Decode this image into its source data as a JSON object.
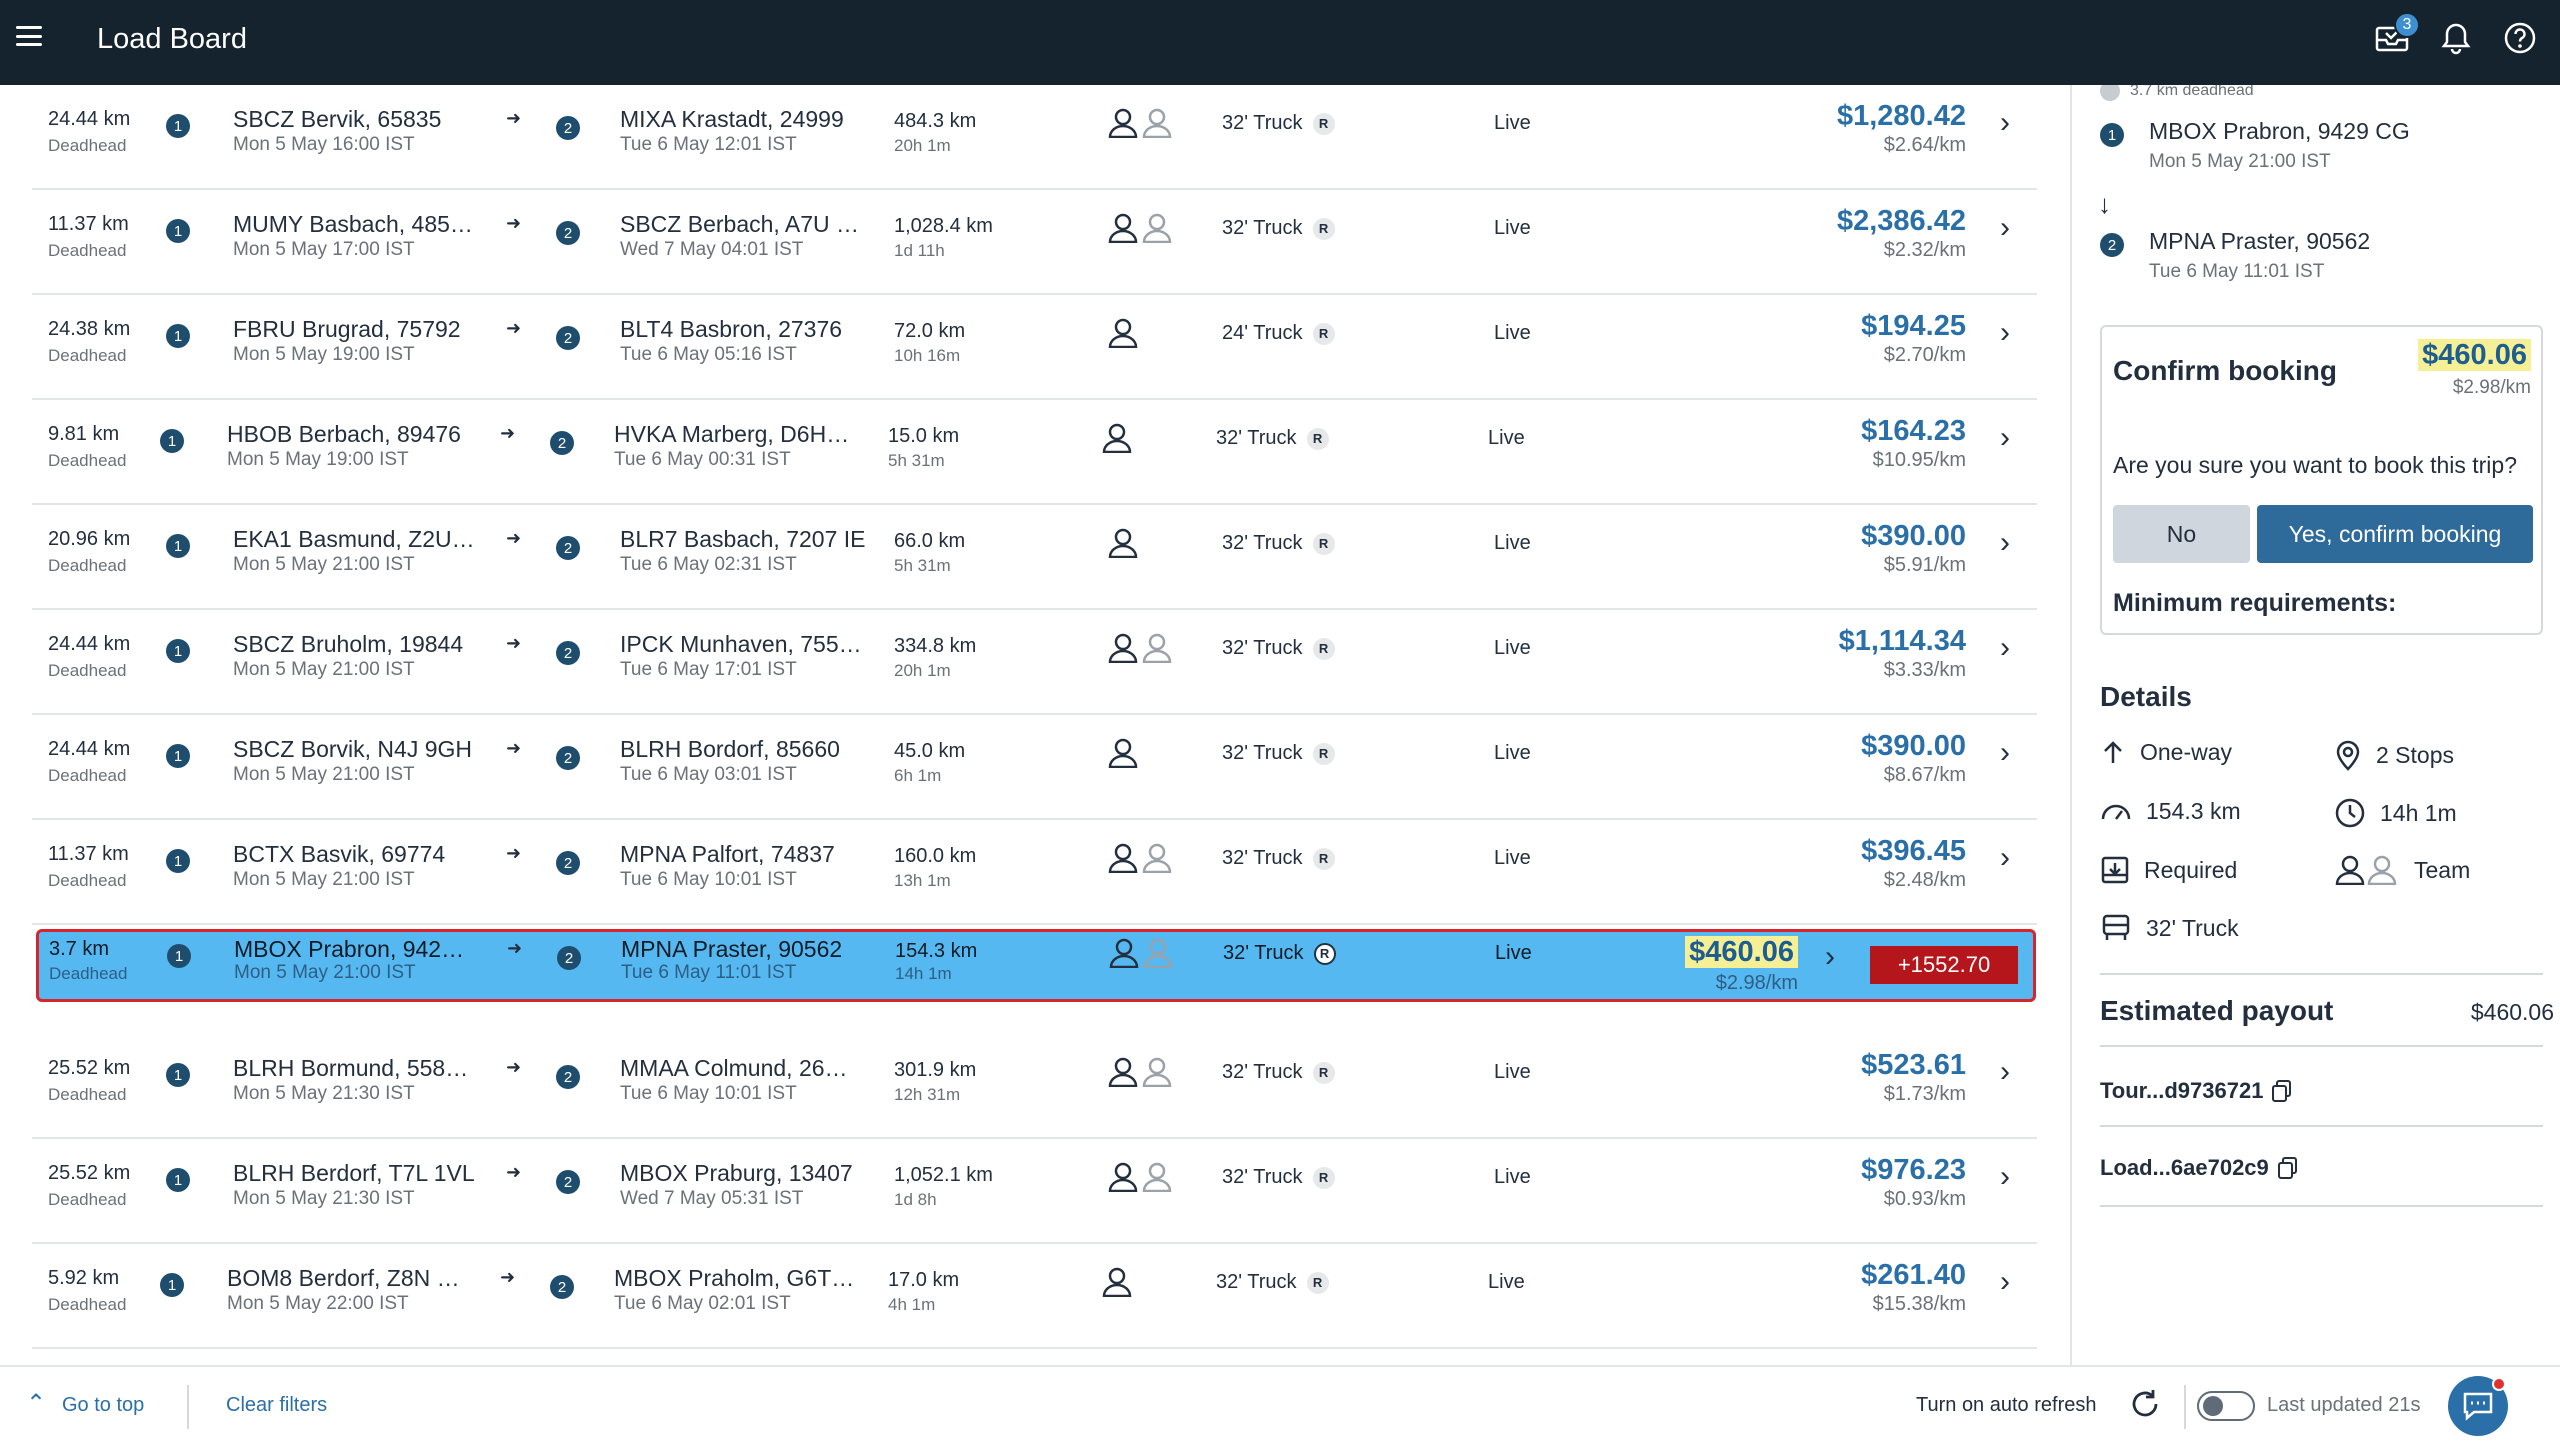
{
  "header": {
    "title": "Load Board",
    "notification_count": "3"
  },
  "loads": [
    {
      "deadhead": "24.44 km",
      "deadhead_label": "Deadhead",
      "origin": "SBCZ Bervik, 65835",
      "origin_time": "Mon 5 May 16:00 IST",
      "dest": "MIXA Krastadt, 24999",
      "dest_time": "Tue 6 May 12:01 IST",
      "distance": "484.3 km",
      "duration": "20h 1m",
      "team": true,
      "equipment": "32' Truck",
      "equip_badge": "R",
      "status": "Live",
      "price": "$1,280.42",
      "rate": "$2.64/km"
    },
    {
      "deadhead": "11.37 km",
      "deadhead_label": "Deadhead",
      "origin": "MUMY Basbach, 485…",
      "origin_time": "Mon 5 May 17:00 IST",
      "dest": "SBCZ Berbach, A7U …",
      "dest_time": "Wed 7 May 04:01 IST",
      "distance": "1,028.4 km",
      "duration": "1d 11h",
      "team": true,
      "equipment": "32' Truck",
      "equip_badge": "R",
      "status": "Live",
      "price": "$2,386.42",
      "rate": "$2.32/km"
    },
    {
      "deadhead": "24.38 km",
      "deadhead_label": "Deadhead",
      "origin": "FBRU Brugrad, 75792",
      "origin_time": "Mon 5 May 19:00 IST",
      "dest": "BLT4 Basbron, 27376",
      "dest_time": "Tue 6 May 05:16 IST",
      "distance": "72.0 km",
      "duration": "10h 16m",
      "team": false,
      "equipment": "24' Truck",
      "equip_badge": "R",
      "status": "Live",
      "price": "$194.25",
      "rate": "$2.70/km"
    },
    {
      "deadhead": "9.81 km",
      "deadhead_label": "Deadhead",
      "origin": "HBOB Berbach, 89476",
      "origin_time": "Mon 5 May 19:00 IST",
      "dest": "HVKA Marberg, D6H…",
      "dest_time": "Tue 6 May 00:31 IST",
      "distance": "15.0 km",
      "duration": "5h 31m",
      "team": false,
      "equipment": "32' Truck",
      "equip_badge": "R",
      "status": "Live",
      "price": "$164.23",
      "rate": "$10.95/km"
    },
    {
      "deadhead": "20.96 km",
      "deadhead_label": "Deadhead",
      "origin": "EKA1 Basmund, Z2U…",
      "origin_time": "Mon 5 May 21:00 IST",
      "dest": "BLR7 Basbach, 7207 IE",
      "dest_time": "Tue 6 May 02:31 IST",
      "distance": "66.0 km",
      "duration": "5h 31m",
      "team": false,
      "equipment": "32' Truck",
      "equip_badge": "R",
      "status": "Live",
      "price": "$390.00",
      "rate": "$5.91/km"
    },
    {
      "deadhead": "24.44 km",
      "deadhead_label": "Deadhead",
      "origin": "SBCZ Bruholm, 19844",
      "origin_time": "Mon 5 May 21:00 IST",
      "dest": "IPCK Munhaven, 755…",
      "dest_time": "Tue 6 May 17:01 IST",
      "distance": "334.8 km",
      "duration": "20h 1m",
      "team": true,
      "equipment": "32' Truck",
      "equip_badge": "R",
      "status": "Live",
      "price": "$1,114.34",
      "rate": "$3.33/km"
    },
    {
      "deadhead": "24.44 km",
      "deadhead_label": "Deadhead",
      "origin": "SBCZ Borvik, N4J 9GH",
      "origin_time": "Mon 5 May 21:00 IST",
      "dest": "BLRH Bordorf, 85660",
      "dest_time": "Tue 6 May 03:01 IST",
      "distance": "45.0 km",
      "duration": "6h 1m",
      "team": false,
      "equipment": "32' Truck",
      "equip_badge": "R",
      "status": "Live",
      "price": "$390.00",
      "rate": "$8.67/km"
    },
    {
      "deadhead": "11.37 km",
      "deadhead_label": "Deadhead",
      "origin": "BCTX Basvik, 69774",
      "origin_time": "Mon 5 May 21:00 IST",
      "dest": "MPNA Palfort, 74837",
      "dest_time": "Tue 6 May 10:01 IST",
      "distance": "160.0 km",
      "duration": "13h 1m",
      "team": true,
      "equipment": "32' Truck",
      "equip_badge": "R",
      "status": "Live",
      "price": "$396.45",
      "rate": "$2.48/km"
    },
    {
      "deadhead": "3.7 km",
      "deadhead_label": "Deadhead",
      "origin": "MBOX Prabron, 942…",
      "origin_time": "Mon 5 May 21:00 IST",
      "dest": "MPNA Praster, 90562",
      "dest_time": "Tue 6 May 11:01 IST",
      "distance": "154.3 km",
      "duration": "14h 1m",
      "team": true,
      "equipment": "32' Truck",
      "equip_badge": "R",
      "status": "Live",
      "price": "$460.06",
      "rate": "$2.98/km",
      "selected": true,
      "bid": "+1552.70"
    },
    {
      "deadhead": "25.52 km",
      "deadhead_label": "Deadhead",
      "origin": "BLRH Bormund, 558…",
      "origin_time": "Mon 5 May 21:30 IST",
      "dest": "MMAA Colmund, 26…",
      "dest_time": "Tue 6 May 10:01 IST",
      "distance": "301.9 km",
      "duration": "12h 31m",
      "team": true,
      "equipment": "32' Truck",
      "equip_badge": "R",
      "status": "Live",
      "price": "$523.61",
      "rate": "$1.73/km"
    },
    {
      "deadhead": "25.52 km",
      "deadhead_label": "Deadhead",
      "origin": "BLRH Berdorf, T7L 1VL",
      "origin_time": "Mon 5 May 21:30 IST",
      "dest": "MBOX Praburg, 13407",
      "dest_time": "Wed 7 May 05:31 IST",
      "distance": "1,052.1 km",
      "duration": "1d 8h",
      "team": true,
      "equipment": "32' Truck",
      "equip_badge": "R",
      "status": "Live",
      "price": "$976.23",
      "rate": "$0.93/km"
    },
    {
      "deadhead": "5.92 km",
      "deadhead_label": "Deadhead",
      "origin": "BOM8 Berdorf, Z8N …",
      "origin_time": "Mon 5 May 22:00 IST",
      "dest": "MBOX Praholm, G6T…",
      "dest_time": "Tue 6 May 02:01 IST",
      "distance": "17.0 km",
      "duration": "4h 1m",
      "team": false,
      "equipment": "32' Truck",
      "equip_badge": "R",
      "status": "Live",
      "price": "$261.40",
      "rate": "$15.38/km"
    }
  ],
  "stop_labels": {
    "first": "1",
    "second": "2"
  },
  "panel": {
    "deadhead_note": "3.7 km deadhead",
    "stop1_name": "MBOX Prabron, 9429 CG",
    "stop1_time": "Mon 5 May 21:00 IST",
    "stop2_name": "MPNA Praster, 90562",
    "stop2_time": "Tue 6 May 11:01 IST",
    "confirm": {
      "title": "Confirm booking",
      "price": "$460.06",
      "rate": "$2.98/km",
      "question": "Are you sure you want to book this trip?",
      "no_label": "No",
      "yes_label": "Yes, confirm booking",
      "min_req": "Minimum requirements:"
    },
    "details": {
      "title": "Details",
      "trip_type": "One-way",
      "stops": "2 Stops",
      "distance": "154.3 km",
      "duration": "14h 1m",
      "requirement": "Required",
      "driver": "Team",
      "equipment": "32' Truck"
    },
    "payout_label": "Estimated payout",
    "payout_value": "$460.06",
    "tour_id": "Tour...d9736721",
    "load_id": "Load...6ae702c9"
  },
  "footer": {
    "go_top": "Go to top",
    "clear_filters": "Clear filters",
    "auto_refresh": "Turn on auto refresh",
    "last_updated": "Last updated 21s"
  },
  "colors": {
    "header_bg": "#15232f",
    "accent": "#2a6fa8",
    "selected_row": "#56b8f0",
    "highlight": "#f5ef96",
    "bid": "#b5161b"
  }
}
